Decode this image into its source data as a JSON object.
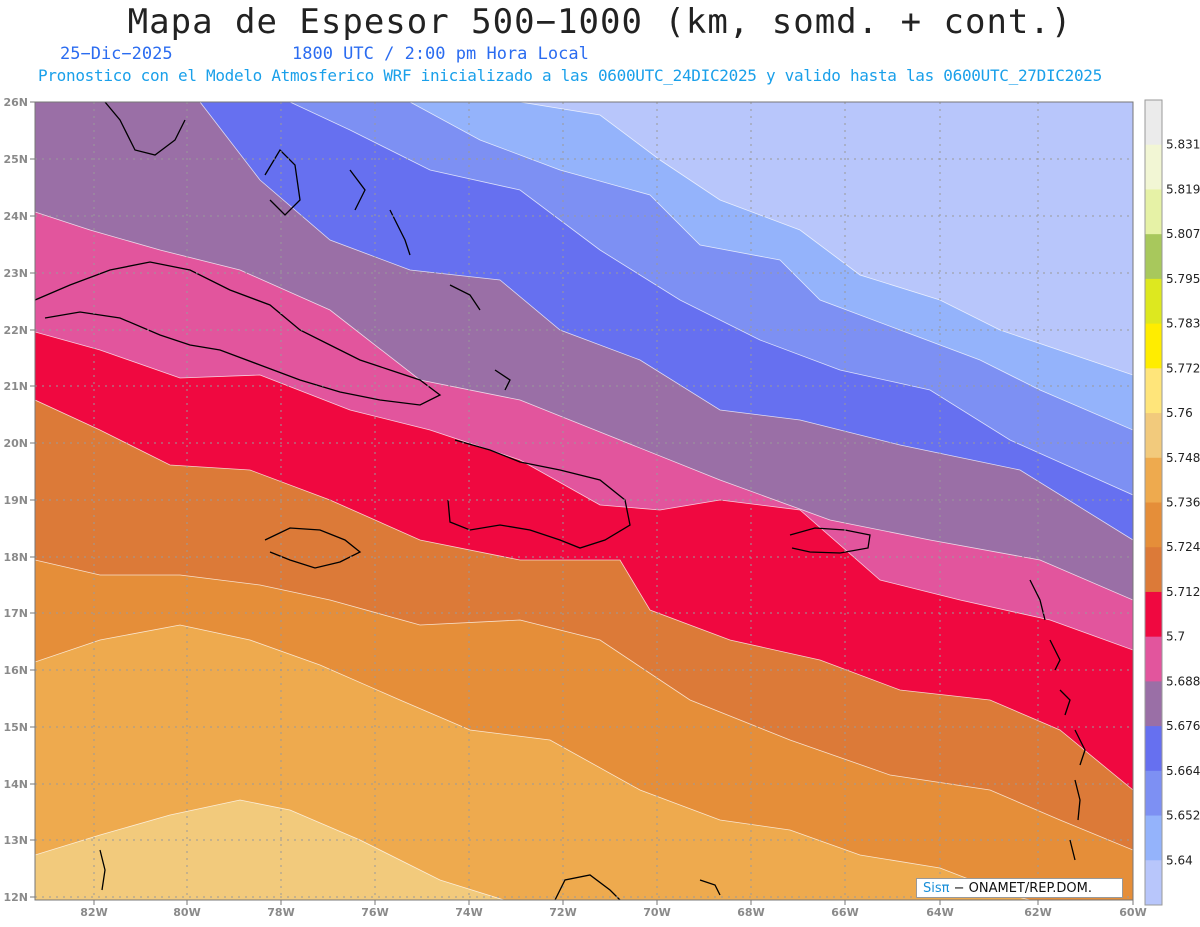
{
  "header": {
    "title": "Mapa de Espesor 500−1000 (km, somd. + cont.)",
    "date": "25−Dic−2025",
    "time": "1800 UTC / 2:00 pm Hora Local",
    "model_line": "Pronostico con el Modelo Atmosferico WRF inicializado a las 0600UTC_24DIC2025 y valido hasta las  0600UTC_27DIC2025"
  },
  "axes": {
    "lat_labels": [
      "26N",
      "25N",
      "24N",
      "23N",
      "22N",
      "21N",
      "20N",
      "19N",
      "18N",
      "17N",
      "16N",
      "15N",
      "14N",
      "13N",
      "12N"
    ],
    "lon_labels": [
      "82W",
      "80W",
      "78W",
      "76W",
      "74W",
      "72W",
      "70W",
      "68W",
      "66W",
      "64W",
      "62W",
      "60W"
    ]
  },
  "colorbar": {
    "levels": [
      "5.831",
      "5.819",
      "5.807",
      "5.795",
      "5.783",
      "5.772",
      "5.76",
      "5.748",
      "5.736",
      "5.724",
      "5.712",
      "5.7",
      "5.688",
      "5.676",
      "5.664",
      "5.652",
      "5.64"
    ],
    "colors": [
      "#ebebeb",
      "#f2f6d4",
      "#e6f2a6",
      "#a8c85c",
      "#dde81f",
      "#ffed00",
      "#ffe57a",
      "#f2ca7c",
      "#eeaa4e",
      "#e58e39",
      "#dc7a38",
      "#f00840",
      "#e2559d",
      "#9a6fa6",
      "#6670f0",
      "#7d90f3",
      "#94b3fb",
      "#b8c6fb"
    ]
  },
  "map": {
    "bands": [
      {
        "name": "band-5.64",
        "color": "#b8c6fb"
      },
      {
        "name": "band-5.652",
        "color": "#94b3fb"
      },
      {
        "name": "band-5.664",
        "color": "#7d90f3"
      },
      {
        "name": "band-5.676",
        "color": "#6670f0"
      },
      {
        "name": "band-5.688",
        "color": "#9a6fa6"
      },
      {
        "name": "band-5.7",
        "color": "#e2559d"
      },
      {
        "name": "band-5.712",
        "color": "#f00840"
      },
      {
        "name": "band-5.724",
        "color": "#dc7a38"
      },
      {
        "name": "band-5.736",
        "color": "#e58e39"
      },
      {
        "name": "band-5.748",
        "color": "#eeaa4e"
      },
      {
        "name": "band-5.76",
        "color": "#f2ca7c"
      }
    ]
  },
  "credit": {
    "brand": "Sisπ",
    "text": " ONAMET/REP.DOM."
  }
}
